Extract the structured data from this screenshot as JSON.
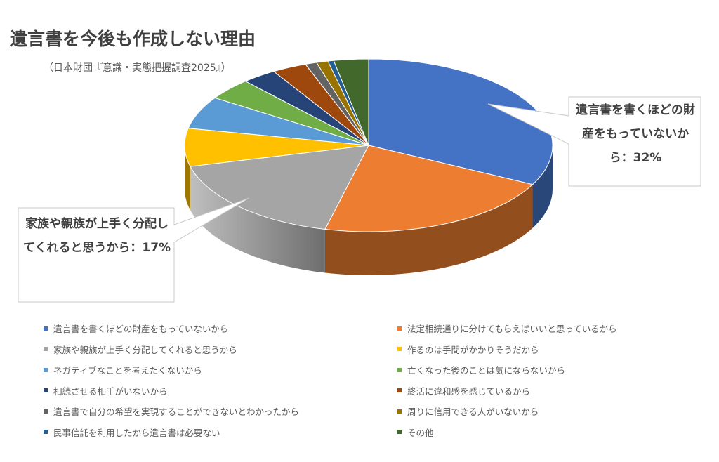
{
  "title": "遺言書を今後も作成しない理由",
  "subtitle": "（日本財団『意識・実態把握調査2025』）",
  "callouts": [
    {
      "text": "遺言書を書くほどの財産をもっていないから：32%"
    },
    {
      "text": "家族や親族が上手く分配してくれると思うから：17%"
    }
  ],
  "chart_data": {
    "type": "pie",
    "title": "遺言書を今後も作成しない理由",
    "categories": [
      "遺言書を書くほどの財産をもっていないから",
      "法定相続通りに分けてもらえばいいと思っているから",
      "家族や親族が上手く分配してくれると思うから",
      "作るのは手間がかかりそうだから",
      "ネガティブなことを考えたくないから",
      "亡くなった後のことは気にならないから",
      "相続させる相手がいないから",
      "終活に違和感を感じているから",
      "遺言書で自分の希望を実現することができないとわかったから",
      "周りに信用できる人がいないから",
      "民事信託を利用したから遺言書は必要ない",
      "その他"
    ],
    "values": [
      32,
      21,
      17,
      7,
      6,
      4,
      3,
      3,
      1,
      1,
      0.5,
      3
    ],
    "colors": [
      "#4472C4",
      "#ED7D31",
      "#A5A5A5",
      "#FFC000",
      "#5B9BD5",
      "#70AD47",
      "#264478",
      "#9E480E",
      "#636363",
      "#997300",
      "#255E91",
      "#43682B"
    ],
    "legend_position": "bottom"
  }
}
